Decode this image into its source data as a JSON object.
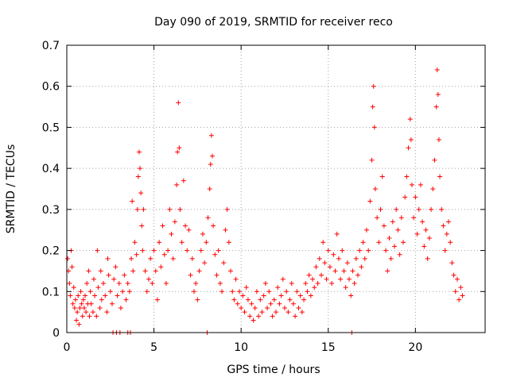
{
  "chart_data": {
    "type": "scatter",
    "title": "Day 090 of 2019, SRMTID for receiver reco",
    "xlabel": "GPS time / hours",
    "ylabel": "SRMTID / TECUs",
    "xlim": [
      0,
      24
    ],
    "ylim": [
      0,
      0.7
    ],
    "xticks": [
      0,
      5,
      10,
      15,
      20
    ],
    "xtick_labels": [
      "0",
      "5",
      "10",
      "15",
      "20"
    ],
    "yticks": [
      0,
      0.1,
      0.2,
      0.3,
      0.4,
      0.5,
      0.6,
      0.7
    ],
    "ytick_labels": [
      "0",
      "0.1",
      "0.2",
      "0.3",
      "0.4",
      "0.5",
      "0.6",
      "0.7"
    ],
    "grid": true,
    "marker": "+",
    "colors": {
      "points": "#ff0000",
      "grid": "#a0a0a0",
      "axes": "#000000"
    },
    "series": [
      {
        "name": "SRMTID",
        "points": [
          [
            0.05,
            0.18
          ],
          [
            0.1,
            0.15
          ],
          [
            0.15,
            0.12
          ],
          [
            0.2,
            0.09
          ],
          [
            0.25,
            0.2
          ],
          [
            0.3,
            0.16
          ],
          [
            0.35,
            0.07
          ],
          [
            0.4,
            0.11
          ],
          [
            0.45,
            0.06
          ],
          [
            0.5,
            0.08
          ],
          [
            0.55,
            0.03
          ],
          [
            0.6,
            0.05
          ],
          [
            0.65,
            0.09
          ],
          [
            0.7,
            0.02
          ],
          [
            0.75,
            0.06
          ],
          [
            0.8,
            0.1
          ],
          [
            0.85,
            0.07
          ],
          [
            0.9,
            0.04
          ],
          [
            0.95,
            0.08
          ],
          [
            1.0,
            0.06
          ],
          [
            1.05,
            0.09
          ],
          [
            1.1,
            0.05
          ],
          [
            1.15,
            0.12
          ],
          [
            1.2,
            0.07
          ],
          [
            1.25,
            0.15
          ],
          [
            1.3,
            0.04
          ],
          [
            1.35,
            0.1
          ],
          [
            1.4,
            0.07
          ],
          [
            1.5,
            0.05
          ],
          [
            1.55,
            0.13
          ],
          [
            1.6,
            0.09
          ],
          [
            1.7,
            0.04
          ],
          [
            1.75,
            0.2
          ],
          [
            1.8,
            0.11
          ],
          [
            1.9,
            0.06
          ],
          [
            1.95,
            0.15
          ],
          [
            2.0,
            0.08
          ],
          [
            2.1,
            0.12
          ],
          [
            2.2,
            0.09
          ],
          [
            2.3,
            0.05
          ],
          [
            2.35,
            0.18
          ],
          [
            2.4,
            0.14
          ],
          [
            2.5,
            0.1
          ],
          [
            2.6,
            0.07
          ],
          [
            2.7,
            0.13
          ],
          [
            2.8,
            0.16
          ],
          [
            2.9,
            0.09
          ],
          [
            3.0,
            0.12
          ],
          [
            3.1,
            0.06
          ],
          [
            3.2,
            0.1
          ],
          [
            3.3,
            0.14
          ],
          [
            3.4,
            0.08
          ],
          [
            3.5,
            0.12
          ],
          [
            3.6,
            0.1
          ],
          [
            3.7,
            0.18
          ],
          [
            3.75,
            0.32
          ],
          [
            3.8,
            0.15
          ],
          [
            3.9,
            0.22
          ],
          [
            4.0,
            0.19
          ],
          [
            4.05,
            0.3
          ],
          [
            4.1,
            0.38
          ],
          [
            4.15,
            0.44
          ],
          [
            4.2,
            0.4
          ],
          [
            4.25,
            0.34
          ],
          [
            4.3,
            0.26
          ],
          [
            4.35,
            0.2
          ],
          [
            4.4,
            0.3
          ],
          [
            4.5,
            0.15
          ],
          [
            4.6,
            0.1
          ],
          [
            4.7,
            0.13
          ],
          [
            4.8,
            0.18
          ],
          [
            4.9,
            0.12
          ],
          [
            5.0,
            0.2
          ],
          [
            5.1,
            0.15
          ],
          [
            5.2,
            0.08
          ],
          [
            5.3,
            0.22
          ],
          [
            5.4,
            0.16
          ],
          [
            5.5,
            0.26
          ],
          [
            5.6,
            0.19
          ],
          [
            5.7,
            0.12
          ],
          [
            5.8,
            0.2
          ],
          [
            5.9,
            0.3
          ],
          [
            6.0,
            0.24
          ],
          [
            6.1,
            0.18
          ],
          [
            6.2,
            0.27
          ],
          [
            6.3,
            0.36
          ],
          [
            6.35,
            0.44
          ],
          [
            6.4,
            0.56
          ],
          [
            6.45,
            0.45
          ],
          [
            6.5,
            0.3
          ],
          [
            6.6,
            0.22
          ],
          [
            6.7,
            0.37
          ],
          [
            6.8,
            0.26
          ],
          [
            6.9,
            0.2
          ],
          [
            7.0,
            0.25
          ],
          [
            7.1,
            0.14
          ],
          [
            7.2,
            0.18
          ],
          [
            7.3,
            0.1
          ],
          [
            7.4,
            0.12
          ],
          [
            7.5,
            0.08
          ],
          [
            7.6,
            0.15
          ],
          [
            7.7,
            0.2
          ],
          [
            7.8,
            0.24
          ],
          [
            7.9,
            0.17
          ],
          [
            8.0,
            0.22
          ],
          [
            8.1,
            0.28
          ],
          [
            8.2,
            0.35
          ],
          [
            8.25,
            0.41
          ],
          [
            8.3,
            0.48
          ],
          [
            8.35,
            0.43
          ],
          [
            8.4,
            0.26
          ],
          [
            8.5,
            0.19
          ],
          [
            8.6,
            0.14
          ],
          [
            8.7,
            0.2
          ],
          [
            8.8,
            0.12
          ],
          [
            8.9,
            0.1
          ],
          [
            9.0,
            0.17
          ],
          [
            9.1,
            0.25
          ],
          [
            9.2,
            0.3
          ],
          [
            9.3,
            0.22
          ],
          [
            9.4,
            0.15
          ],
          [
            9.5,
            0.1
          ],
          [
            9.6,
            0.08
          ],
          [
            9.7,
            0.13
          ],
          [
            9.8,
            0.07
          ],
          [
            9.9,
            0.1
          ],
          [
            10.0,
            0.06
          ],
          [
            10.1,
            0.09
          ],
          [
            10.2,
            0.05
          ],
          [
            10.3,
            0.11
          ],
          [
            10.4,
            0.08
          ],
          [
            10.5,
            0.04
          ],
          [
            10.6,
            0.07
          ],
          [
            10.7,
            0.03
          ],
          [
            10.8,
            0.06
          ],
          [
            10.9,
            0.1
          ],
          [
            11.0,
            0.04
          ],
          [
            11.1,
            0.08
          ],
          [
            11.2,
            0.05
          ],
          [
            11.3,
            0.09
          ],
          [
            11.4,
            0.12
          ],
          [
            11.5,
            0.06
          ],
          [
            11.6,
            0.1
          ],
          [
            11.7,
            0.07
          ],
          [
            11.8,
            0.04
          ],
          [
            11.9,
            0.08
          ],
          [
            12.0,
            0.05
          ],
          [
            12.1,
            0.11
          ],
          [
            12.2,
            0.07
          ],
          [
            12.3,
            0.09
          ],
          [
            12.4,
            0.13
          ],
          [
            12.5,
            0.06
          ],
          [
            12.6,
            0.1
          ],
          [
            12.7,
            0.05
          ],
          [
            12.8,
            0.08
          ],
          [
            12.9,
            0.12
          ],
          [
            13.0,
            0.07
          ],
          [
            13.1,
            0.04
          ],
          [
            13.2,
            0.1
          ],
          [
            13.3,
            0.06
          ],
          [
            13.4,
            0.09
          ],
          [
            13.5,
            0.05
          ],
          [
            13.6,
            0.08
          ],
          [
            13.7,
            0.12
          ],
          [
            13.8,
            0.1
          ],
          [
            13.9,
            0.14
          ],
          [
            14.0,
            0.09
          ],
          [
            14.1,
            0.13
          ],
          [
            14.2,
            0.11
          ],
          [
            14.3,
            0.16
          ],
          [
            14.4,
            0.12
          ],
          [
            14.5,
            0.18
          ],
          [
            14.6,
            0.14
          ],
          [
            14.7,
            0.22
          ],
          [
            14.8,
            0.17
          ],
          [
            14.9,
            0.13
          ],
          [
            15.0,
            0.2
          ],
          [
            15.1,
            0.16
          ],
          [
            15.2,
            0.12
          ],
          [
            15.3,
            0.19
          ],
          [
            15.4,
            0.15
          ],
          [
            15.5,
            0.24
          ],
          [
            15.6,
            0.18
          ],
          [
            15.7,
            0.13
          ],
          [
            15.8,
            0.2
          ],
          [
            15.9,
            0.15
          ],
          [
            16.0,
            0.11
          ],
          [
            16.1,
            0.17
          ],
          [
            16.2,
            0.13
          ],
          [
            16.3,
            0.09
          ],
          [
            16.4,
            0.15
          ],
          [
            16.5,
            0.12
          ],
          [
            16.6,
            0.18
          ],
          [
            16.7,
            0.14
          ],
          [
            16.8,
            0.2
          ],
          [
            16.9,
            0.16
          ],
          [
            17.0,
            0.22
          ],
          [
            17.1,
            0.18
          ],
          [
            17.2,
            0.25
          ],
          [
            17.3,
            0.2
          ],
          [
            17.4,
            0.32
          ],
          [
            17.5,
            0.42
          ],
          [
            17.55,
            0.55
          ],
          [
            17.6,
            0.6
          ],
          [
            17.65,
            0.5
          ],
          [
            17.7,
            0.35
          ],
          [
            17.8,
            0.28
          ],
          [
            17.9,
            0.22
          ],
          [
            18.0,
            0.3
          ],
          [
            18.1,
            0.38
          ],
          [
            18.2,
            0.26
          ],
          [
            18.3,
            0.2
          ],
          [
            18.4,
            0.15
          ],
          [
            18.5,
            0.23
          ],
          [
            18.6,
            0.18
          ],
          [
            18.7,
            0.27
          ],
          [
            18.8,
            0.21
          ],
          [
            18.9,
            0.3
          ],
          [
            19.0,
            0.25
          ],
          [
            19.1,
            0.19
          ],
          [
            19.2,
            0.28
          ],
          [
            19.3,
            0.22
          ],
          [
            19.4,
            0.33
          ],
          [
            19.5,
            0.38
          ],
          [
            19.6,
            0.45
          ],
          [
            19.7,
            0.52
          ],
          [
            19.75,
            0.47
          ],
          [
            19.8,
            0.36
          ],
          [
            19.9,
            0.28
          ],
          [
            20.0,
            0.33
          ],
          [
            20.1,
            0.24
          ],
          [
            20.2,
            0.3
          ],
          [
            20.3,
            0.36
          ],
          [
            20.4,
            0.27
          ],
          [
            20.5,
            0.21
          ],
          [
            20.6,
            0.25
          ],
          [
            20.7,
            0.18
          ],
          [
            20.8,
            0.23
          ],
          [
            20.9,
            0.3
          ],
          [
            21.0,
            0.35
          ],
          [
            21.1,
            0.42
          ],
          [
            21.2,
            0.55
          ],
          [
            21.25,
            0.64
          ],
          [
            21.3,
            0.58
          ],
          [
            21.35,
            0.47
          ],
          [
            21.4,
            0.38
          ],
          [
            21.5,
            0.3
          ],
          [
            21.6,
            0.26
          ],
          [
            21.7,
            0.2
          ],
          [
            21.8,
            0.24
          ],
          [
            21.9,
            0.27
          ],
          [
            22.0,
            0.22
          ],
          [
            22.1,
            0.17
          ],
          [
            22.2,
            0.14
          ],
          [
            22.3,
            0.1
          ],
          [
            22.4,
            0.13
          ],
          [
            22.5,
            0.08
          ],
          [
            22.6,
            0.11
          ],
          [
            22.7,
            0.09
          ],
          [
            2.65,
            0.0
          ],
          [
            2.85,
            0.0
          ],
          [
            3.05,
            0.0
          ],
          [
            3.5,
            0.0
          ],
          [
            3.65,
            0.0
          ],
          [
            8.05,
            0.0
          ],
          [
            16.35,
            0.0
          ]
        ]
      }
    ]
  }
}
